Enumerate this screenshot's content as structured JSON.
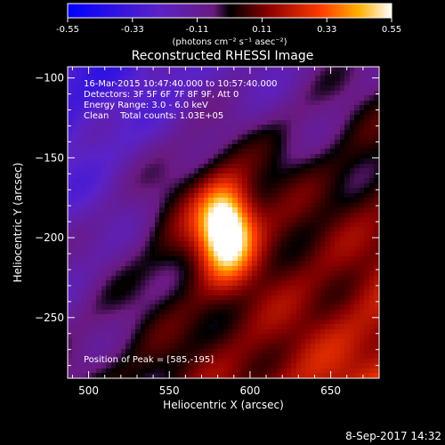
{
  "chart_data": {
    "type": "heatmap",
    "title": "Reconstructed RHESSI Image",
    "xlabel": "Heliocentric X (arcsec)",
    "ylabel": "Heliocentric Y (arcsec)",
    "xlim": [
      487,
      680
    ],
    "ylim": [
      -288,
      -93
    ],
    "x_ticks": [
      500,
      550,
      600,
      650
    ],
    "y_ticks": [
      -100,
      -150,
      -200,
      -250
    ],
    "colorbar": {
      "ticks": [
        "-0.55",
        "-0.33",
        "-0.11",
        "0.11",
        "0.33",
        "0.55"
      ],
      "range": [
        -0.55,
        0.55
      ],
      "unit_label": "(photons cm⁻² s⁻¹ asec⁻²)",
      "colormap": "IDL color table 3 (hot) with blue/purple negative branch"
    },
    "info_lines": [
      "16-Mar-2015 10:47:40.000 to 10:57:40.000",
      "Detectors: 3F 5F 6F 7F 8F 9F, Att 0",
      "Energy Range: 3.0 - 6.0 keV",
      "Clean    Total counts: 1.03E+05"
    ],
    "peak_text": "Position of Peak = [585,-195]",
    "peak": {
      "x": 585,
      "y": -195,
      "value": 0.55
    },
    "sources": [
      {
        "x": 585,
        "y": -195,
        "amp": 0.62,
        "sx": 11,
        "sy": 18
      },
      {
        "x": 578,
        "y": -185,
        "amp": 0.2,
        "sx": 30,
        "sy": 35
      }
    ],
    "background_gradient": {
      "low_corner": [
        487,
        -93
      ],
      "high_corner": [
        680,
        -288
      ],
      "min": -0.35,
      "max": 0.25
    }
  },
  "footer": {
    "timestamp": "8-Sep-2017 14:32"
  }
}
